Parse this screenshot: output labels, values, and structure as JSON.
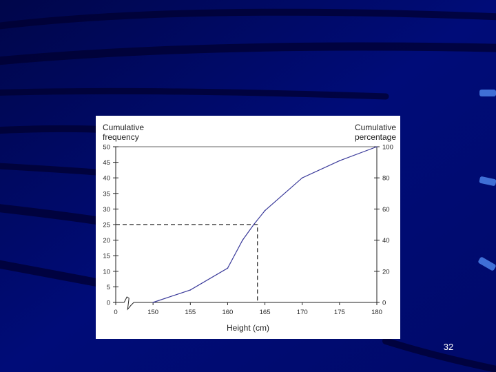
{
  "slide": {
    "number": "32"
  },
  "chart_data": {
    "type": "line",
    "xlabel": "Height (cm)",
    "ylabel_left": "Cumulative\nfrequency",
    "ylabel_right": "Cumulative\npercentage",
    "x_ticks": [
      "0",
      "150",
      "155",
      "160",
      "165",
      "170",
      "175",
      "180"
    ],
    "x_tick_values": [
      145,
      150,
      155,
      160,
      165,
      170,
      175,
      180
    ],
    "y_left_ticks": [
      0,
      5,
      10,
      15,
      20,
      25,
      30,
      35,
      40,
      45,
      50
    ],
    "y_right_ticks": [
      0,
      20,
      40,
      60,
      80,
      100
    ],
    "xlim": [
      145,
      180
    ],
    "ylim": [
      0,
      50
    ],
    "y_right_lim": [
      0,
      100
    ],
    "axis_break_on_x": true,
    "series": [
      {
        "x": [
          150,
          155,
          160,
          162,
          163.5,
          165,
          170,
          175,
          180
        ],
        "y": [
          0,
          4,
          11,
          20,
          25,
          29.5,
          40,
          45.5,
          50
        ]
      }
    ],
    "reference_lines": [
      {
        "type": "dashed",
        "from_y": 25,
        "at_x": 164
      }
    ],
    "colors": {
      "line": "#3a3a9a",
      "axes": "#222222",
      "grid_top": "#666666"
    }
  }
}
